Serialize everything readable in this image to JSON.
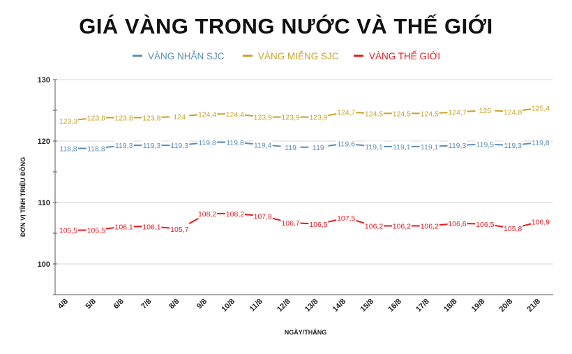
{
  "chart_data": {
    "type": "line",
    "title": "GIÁ VÀNG TRONG NƯỚC VÀ THẾ GIỚI",
    "xlabel": "NGÀY/THÁNG",
    "ylabel": "ĐƠN VỊ TÍNH TRIỆU ĐỒNG",
    "ylim": [
      95,
      130
    ],
    "yticks": [
      100,
      110,
      120,
      130
    ],
    "ytick_labels": [
      "100",
      "110",
      "120",
      "130"
    ],
    "grid": "horizontal",
    "legend_position": "top-center",
    "categories": [
      "4/8",
      "5/8",
      "6/8",
      "7/8",
      "8/8",
      "9/8",
      "10/8",
      "11/8",
      "12/8",
      "13/8",
      "14/8",
      "15/8",
      "16/8",
      "17/8",
      "18/8",
      "19/8",
      "20/8",
      "21/8"
    ],
    "series": [
      {
        "name": "VÀNG NHẪN SJC",
        "color": "#5b8db8",
        "values": [
          118.8,
          118.8,
          119.3,
          119.3,
          119.3,
          119.8,
          119.8,
          119.4,
          119,
          119,
          119.6,
          119.1,
          119.1,
          119.1,
          119.3,
          119.5,
          119.3,
          119.8
        ],
        "labels": [
          "118,8",
          "118,8",
          "119,3",
          "119,3",
          "119,3",
          "119,8",
          "119,8",
          "119,4",
          "119",
          "119",
          "119,6",
          "119,1",
          "119,1",
          "119,1",
          "119,3",
          "119,5",
          "119,3",
          "119,8"
        ]
      },
      {
        "name": "VÀNG MIẾNG SJC",
        "color": "#c9a227",
        "values": [
          123.3,
          123.8,
          123.8,
          123.8,
          124,
          124.4,
          124.4,
          123.9,
          123.9,
          123.9,
          124.7,
          124.5,
          124.5,
          124.5,
          124.7,
          125,
          124.8,
          125.4
        ],
        "labels": [
          "123,3",
          "123,8",
          "123,8",
          "123,8",
          "124",
          "124,4",
          "124,4",
          "123,9",
          "123,9",
          "123,9",
          "124,7",
          "124,5",
          "124,5",
          "124,5",
          "124,7",
          "125",
          "124,8",
          "125,4"
        ]
      },
      {
        "name": "VÀNG THẾ GIỚI",
        "color": "#e8191f",
        "values": [
          105.5,
          105.5,
          106.1,
          106.1,
          105.7,
          108.2,
          108.2,
          107.8,
          106.7,
          106.5,
          107.5,
          106.2,
          106.2,
          106.2,
          106.6,
          106.5,
          105.8,
          106.9
        ],
        "labels": [
          "105,5",
          "105,5",
          "106,1",
          "106,1",
          "105,7",
          "108,2",
          "108,2",
          "107,8",
          "106,7",
          "106,5",
          "107,5",
          "106,2",
          "106,2",
          "106,2",
          "106,6",
          "106,5",
          "105,8",
          "106,9"
        ]
      }
    ]
  }
}
